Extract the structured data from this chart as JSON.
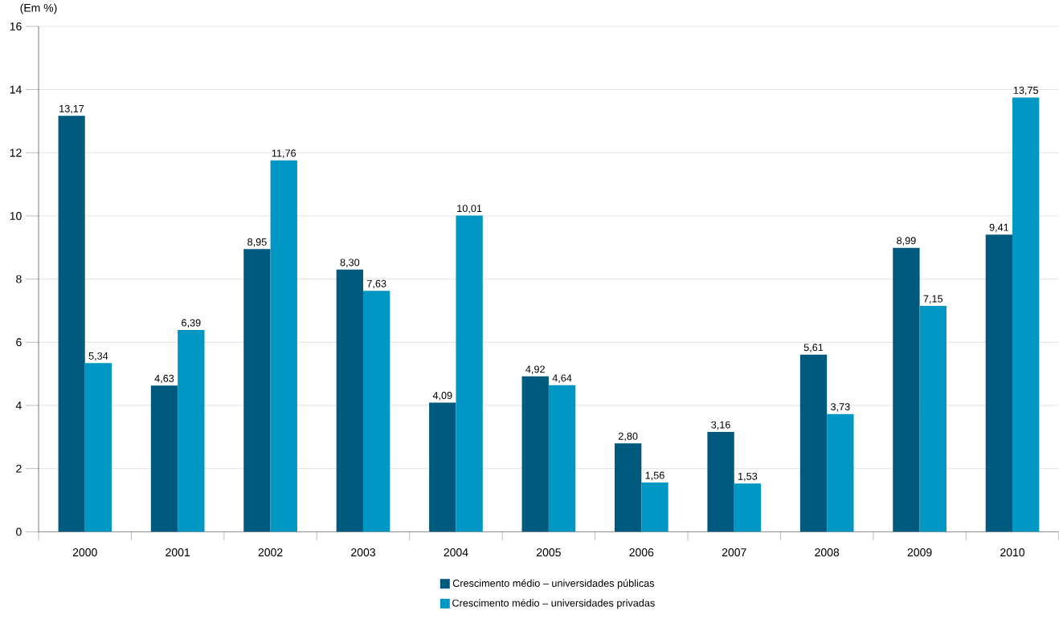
{
  "chart_data": {
    "type": "bar",
    "ylabel": "(Em %)",
    "categories": [
      "2000",
      "2001",
      "2002",
      "2003",
      "2004",
      "2005",
      "2006",
      "2007",
      "2008",
      "2009",
      "2010"
    ],
    "series": [
      {
        "name": "Crescimento médio – universidades públicas",
        "color": "#005a7d",
        "values": [
          13.17,
          4.63,
          8.95,
          8.3,
          4.09,
          4.92,
          2.8,
          3.16,
          5.61,
          8.99,
          9.41
        ],
        "value_labels": [
          "13,17",
          "4,63",
          "8,95",
          "8,30",
          "4,09",
          "4,92",
          "2,80",
          "3,16",
          "5,61",
          "8,99",
          "9,41"
        ]
      },
      {
        "name": "Crescimento médio – universidades privadas",
        "color": "#0097c4",
        "values": [
          5.34,
          6.39,
          11.76,
          7.63,
          10.01,
          4.64,
          1.56,
          1.53,
          3.73,
          7.15,
          13.75
        ],
        "value_labels": [
          "5,34",
          "6,39",
          "11,76",
          "7,63",
          "10,01",
          "4,64",
          "1,56",
          "1,53",
          "3,73",
          "7,15",
          "13,75"
        ]
      }
    ],
    "ylim": [
      0,
      16
    ],
    "yticks": [
      0,
      2,
      4,
      6,
      8,
      10,
      12,
      14,
      16
    ],
    "grid": "y",
    "legend": "bottom"
  }
}
